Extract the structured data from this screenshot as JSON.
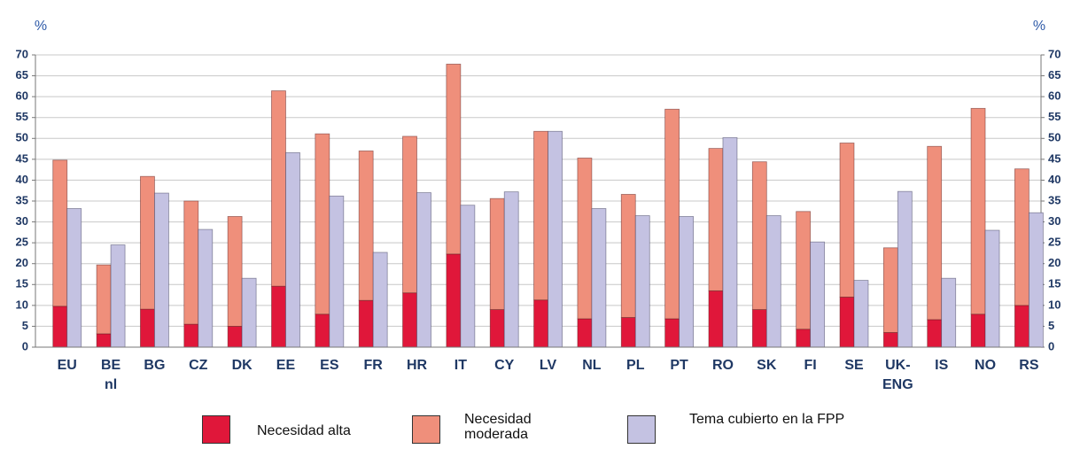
{
  "chart_data": {
    "type": "bar",
    "y_label": "%",
    "y2_label": "%",
    "categories": [
      "EU",
      "BE\nnl",
      "BG",
      "CZ",
      "DK",
      "EE",
      "ES",
      "FR",
      "HR",
      "IT",
      "CY",
      "LV",
      "NL",
      "PL",
      "PT",
      "RO",
      "SK",
      "FI",
      "SE",
      "UK-\nENG",
      "IS",
      "NO",
      "RS"
    ],
    "series": [
      {
        "name": "Necesidad alta",
        "color": "#e0173a",
        "values": [
          9.8,
          3.2,
          9.1,
          5.5,
          5.0,
          14.6,
          7.9,
          11.2,
          13.0,
          22.3,
          9.0,
          11.3,
          6.8,
          7.1,
          6.8,
          13.5,
          9.0,
          4.3,
          12.0,
          3.5,
          6.6,
          7.9,
          10.0
        ]
      },
      {
        "name": "Necesidad moderada",
        "color": "#ef8f7b",
        "values": [
          35.0,
          16.5,
          31.8,
          29.5,
          26.3,
          46.8,
          43.2,
          35.8,
          37.5,
          45.5,
          26.6,
          40.4,
          38.5,
          29.5,
          50.2,
          34.1,
          35.4,
          28.2,
          36.9,
          20.3,
          41.5,
          49.3,
          32.7
        ]
      },
      {
        "name": "Tema cubierto en la FPP",
        "color": "#c4c2e2",
        "values": [
          33.2,
          24.5,
          36.9,
          28.2,
          16.5,
          46.6,
          36.2,
          22.7,
          37.0,
          34.0,
          37.2,
          51.7,
          33.2,
          31.5,
          31.3,
          50.2,
          31.5,
          25.2,
          16.0,
          37.3,
          16.5,
          28.0,
          32.2
        ]
      }
    ],
    "ylim": [
      0,
      70
    ],
    "yticks": [
      0,
      5,
      10,
      15,
      20,
      25,
      30,
      35,
      40,
      45,
      50,
      55,
      60,
      65,
      70
    ],
    "y2lim": [
      0,
      70
    ],
    "y2ticks": [
      0,
      5,
      10,
      15,
      20,
      25,
      30,
      35,
      40,
      45,
      50,
      55,
      60,
      65,
      70
    ],
    "grid": true,
    "legend": "bottom"
  }
}
